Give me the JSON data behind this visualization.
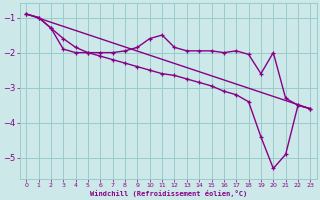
{
  "background_color": "#cce8e8",
  "line_color": "#880088",
  "grid_color": "#99cccc",
  "xlabel": "Windchill (Refroidissement éolien,°C)",
  "xlabel_color": "#880088",
  "tick_color": "#880088",
  "xlim": [
    -0.5,
    23.5
  ],
  "ylim": [
    -5.6,
    -0.6
  ],
  "yticks": [
    -5,
    -4,
    -3,
    -2,
    -1
  ],
  "xticks": [
    0,
    1,
    2,
    3,
    4,
    5,
    6,
    7,
    8,
    9,
    10,
    11,
    12,
    13,
    14,
    15,
    16,
    17,
    18,
    19,
    20,
    21,
    22,
    23
  ],
  "line1_x": [
    0,
    1,
    2,
    3,
    4,
    5,
    6,
    7,
    8,
    9,
    10,
    11,
    12,
    13,
    14,
    15,
    16,
    17,
    18,
    19,
    20,
    21,
    22,
    23
  ],
  "line1_y": [
    -0.9,
    -1.0,
    -1.3,
    -1.9,
    -2.0,
    -2.0,
    -2.0,
    -2.0,
    -1.95,
    -1.85,
    -1.6,
    -1.5,
    -1.85,
    -1.95,
    -1.95,
    -1.95,
    -2.0,
    -1.95,
    -2.05,
    -2.6,
    -2.0,
    -3.3,
    -3.5,
    -3.6
  ],
  "line2_x": [
    0,
    1,
    2,
    3,
    4,
    5,
    6,
    7,
    8,
    9,
    10,
    11,
    12,
    13,
    14,
    15,
    16,
    17,
    18,
    19,
    20,
    21,
    22,
    23
  ],
  "line2_y": [
    -0.9,
    -1.0,
    -1.3,
    -1.6,
    -1.85,
    -2.0,
    -2.1,
    -2.2,
    -2.3,
    -2.4,
    -2.5,
    -2.6,
    -2.65,
    -2.75,
    -2.85,
    -2.95,
    -3.1,
    -3.2,
    -3.4,
    -4.4,
    -5.3,
    -4.9,
    -3.5,
    -3.6
  ],
  "line3_x": [
    0,
    23
  ],
  "line3_y": [
    -0.9,
    -3.6
  ]
}
